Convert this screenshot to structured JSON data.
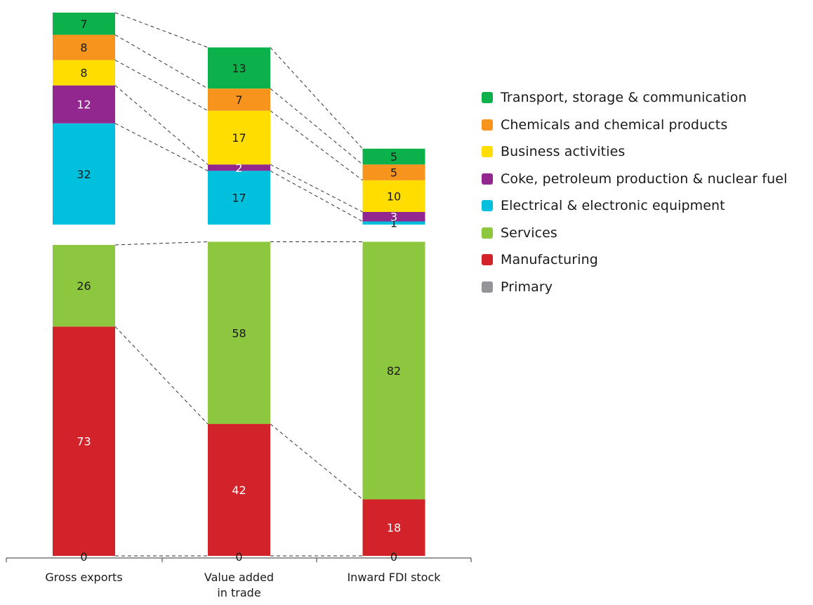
{
  "chart_data": [
    {
      "type": "bar",
      "stacked": true,
      "part": "sector breakdown",
      "categories": [
        "Gross exports",
        "Value added in trade",
        "Inward FDI stock"
      ],
      "series": [
        {
          "name": "Primary",
          "values": [
            0,
            0,
            0
          ],
          "color": "#939598"
        },
        {
          "name": "Manufacturing",
          "values": [
            73,
            42,
            18
          ],
          "color": "#d2232a"
        },
        {
          "name": "Services",
          "values": [
            26,
            58,
            82
          ],
          "color": "#8dc63f"
        }
      ],
      "value_labels": [
        [
          "0",
          "73",
          "26"
        ],
        [
          "0",
          "42",
          "58"
        ],
        [
          "0",
          "18",
          "82"
        ]
      ],
      "category_labels": [
        [
          "Gross exports"
        ],
        [
          "Value added",
          "in trade"
        ],
        [
          "Inward FDI stock"
        ]
      ]
    },
    {
      "type": "bar",
      "stacked": true,
      "part": "top industries",
      "categories": [
        "Gross exports",
        "Value added in trade",
        "Inward FDI stock"
      ],
      "series": [
        {
          "name": "Electrical & electronic equipment",
          "values": [
            32,
            17,
            1
          ],
          "color": "#00c0de"
        },
        {
          "name": "Coke, petroleum production & nuclear fuel",
          "values": [
            12,
            2,
            3
          ],
          "color": "#92278f"
        },
        {
          "name": "Business activities",
          "values": [
            8,
            17,
            10
          ],
          "color": "#ffdd00"
        },
        {
          "name": "Chemicals and chemical products",
          "values": [
            8,
            7,
            5
          ],
          "color": "#f7941d"
        },
        {
          "name": "Transport, storage & communication",
          "values": [
            7,
            13,
            5
          ],
          "color": "#0db14b"
        }
      ],
      "value_labels": [
        [
          "32",
          "12",
          "8",
          "8",
          "7"
        ],
        [
          "17",
          "2",
          "17",
          "7",
          "13"
        ],
        [
          "1",
          "3",
          "10",
          "5",
          "5"
        ]
      ]
    }
  ],
  "legend": [
    {
      "label": "Transport, storage & communication",
      "color": "#0db14b"
    },
    {
      "label": "Chemicals and chemical products",
      "color": "#f7941d"
    },
    {
      "label": "Business activities",
      "color": "#ffdd00"
    },
    {
      "label": "Coke, petroleum production & nuclear fuel",
      "color": "#92278f"
    },
    {
      "label": "Electrical & electronic equipment",
      "color": "#00c0de"
    },
    {
      "label": "Services",
      "color": "#8dc63f"
    },
    {
      "label": "Manufacturing",
      "color": "#d2232a"
    },
    {
      "label": "Primary",
      "color": "#939598"
    }
  ]
}
